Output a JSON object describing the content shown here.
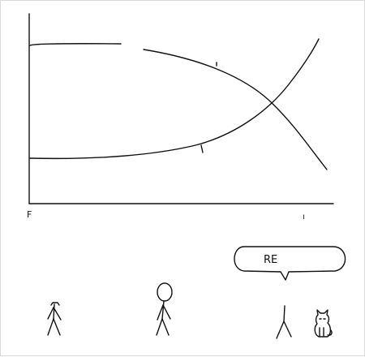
{
  "colors": {
    "ink": "#111111",
    "background": "#ffffff"
  },
  "chart": {
    "x_axis_start_label": "F",
    "x_axis_end_label": "ı"
  },
  "speech_bubble": {
    "text": "RE"
  }
}
